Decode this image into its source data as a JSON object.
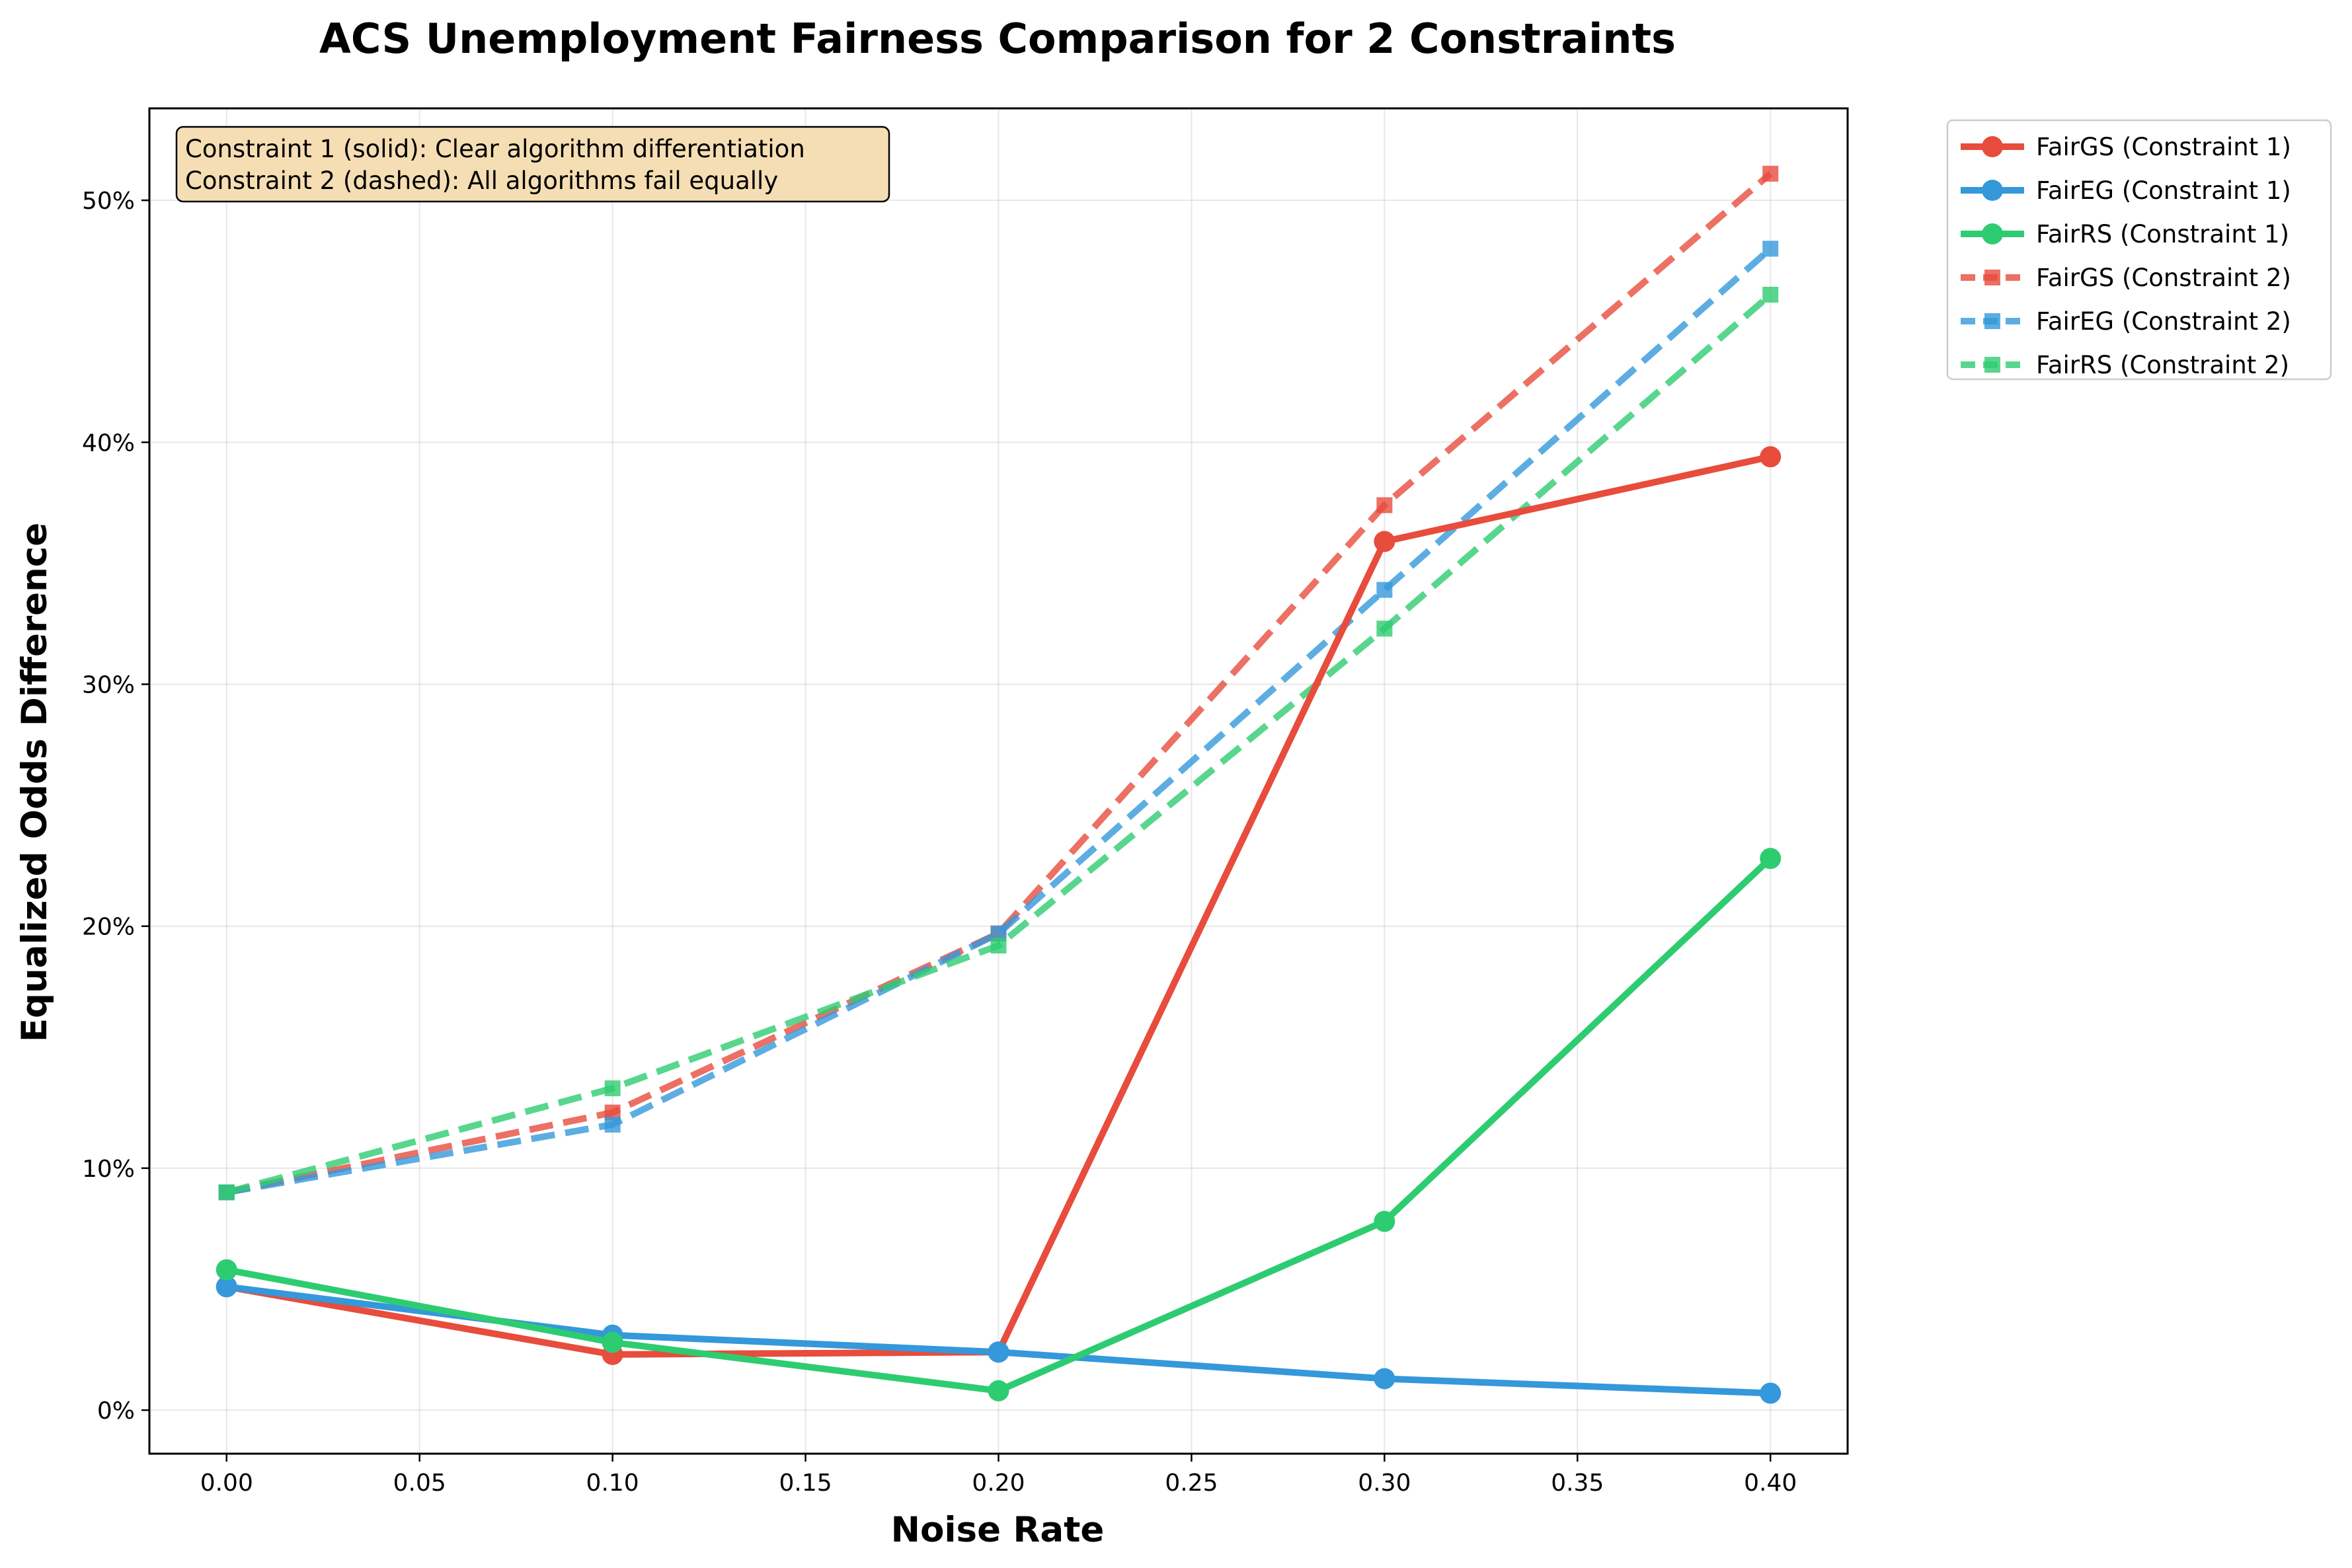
{
  "chart_data": {
    "type": "line",
    "title": "ACS Unemployment Fairness Comparison for 2 Constraints",
    "xlabel": "Noise Rate",
    "ylabel": "Equalized Odds Difference",
    "x": [
      0.0,
      0.1,
      0.2,
      0.3,
      0.4
    ],
    "xlim": [
      -0.02,
      0.42
    ],
    "ylim": [
      -1.8,
      53.8
    ],
    "x_ticks": [
      "0.00",
      "0.05",
      "0.10",
      "0.15",
      "0.20",
      "0.25",
      "0.30",
      "0.35",
      "0.40"
    ],
    "y_ticks": [
      "0%",
      "10%",
      "20%",
      "30%",
      "40%",
      "50%"
    ],
    "grid": true,
    "legend_position": "outside-top-right",
    "annotation": [
      "Constraint 1 (solid): Clear algorithm differentiation",
      "Constraint 2 (dashed): All algorithms fail equally"
    ],
    "series": [
      {
        "name": "FairGS (Constraint 1)",
        "color": "#e74c3c",
        "style": "solid",
        "marker": "circle",
        "values": [
          5.1,
          2.3,
          2.4,
          35.9,
          39.4
        ]
      },
      {
        "name": "FairEG (Constraint 1)",
        "color": "#3498db",
        "style": "solid",
        "marker": "circle",
        "values": [
          5.1,
          3.1,
          2.4,
          1.3,
          0.7
        ]
      },
      {
        "name": "FairRS (Constraint 1)",
        "color": "#2ecc71",
        "style": "solid",
        "marker": "circle",
        "values": [
          5.8,
          2.8,
          0.8,
          7.8,
          22.8
        ]
      },
      {
        "name": "FairGS (Constraint 2)",
        "color": "#e74c3c",
        "style": "dashed",
        "marker": "square",
        "values": [
          9.0,
          12.3,
          19.7,
          37.4,
          51.1
        ]
      },
      {
        "name": "FairEG (Constraint 2)",
        "color": "#3498db",
        "style": "dashed",
        "marker": "square",
        "values": [
          9.0,
          11.8,
          19.7,
          33.9,
          48.0
        ]
      },
      {
        "name": "FairRS (Constraint 2)",
        "color": "#2ecc71",
        "style": "dashed",
        "marker": "square",
        "values": [
          9.0,
          13.3,
          19.2,
          32.3,
          46.1
        ]
      }
    ]
  }
}
